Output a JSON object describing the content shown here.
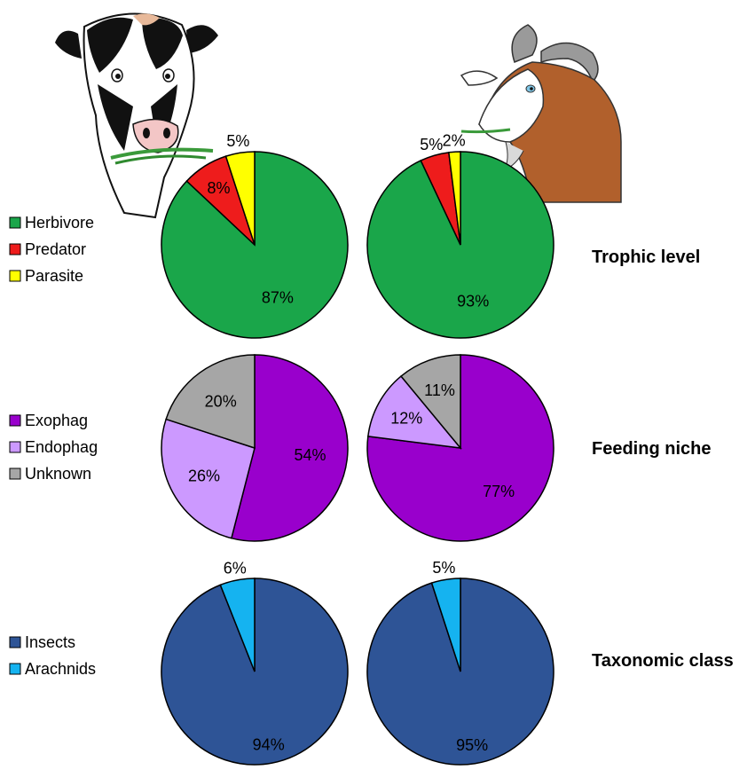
{
  "chart_data": [
    {
      "type": "pie",
      "row": "Trophic level",
      "animal": "cow",
      "title": "",
      "slices": [
        {
          "name": "Herbivore",
          "value": 87,
          "label": "87%",
          "color": "#1aa64a"
        },
        {
          "name": "Predator",
          "value": 8,
          "label": "8%",
          "color": "#ee1c1c"
        },
        {
          "name": "Parasite",
          "value": 5,
          "label": "5%",
          "color": "#ffff00"
        }
      ]
    },
    {
      "type": "pie",
      "row": "Trophic level",
      "animal": "goat",
      "title": "",
      "slices": [
        {
          "name": "Herbivore",
          "value": 93,
          "label": "93%",
          "color": "#1aa64a"
        },
        {
          "name": "Predator",
          "value": 5,
          "label": "5%",
          "color": "#ee1c1c"
        },
        {
          "name": "Parasite",
          "value": 2,
          "label": "2%",
          "color": "#ffff00"
        }
      ]
    },
    {
      "type": "pie",
      "row": "Feeding niche",
      "animal": "cow",
      "title": "",
      "slices": [
        {
          "name": "Exophag",
          "value": 54,
          "label": "54%",
          "color": "#9900cc"
        },
        {
          "name": "Endophag",
          "value": 26,
          "label": "26%",
          "color": "#cc99ff"
        },
        {
          "name": "Unknown",
          "value": 20,
          "label": "20%",
          "color": "#a6a6a6"
        }
      ]
    },
    {
      "type": "pie",
      "row": "Feeding niche",
      "animal": "goat",
      "title": "",
      "slices": [
        {
          "name": "Exophag",
          "value": 77,
          "label": "77%",
          "color": "#9900cc"
        },
        {
          "name": "Endophag",
          "value": 12,
          "label": "12%",
          "color": "#cc99ff"
        },
        {
          "name": "Unknown",
          "value": 11,
          "label": "11%",
          "color": "#a6a6a6"
        }
      ]
    },
    {
      "type": "pie",
      "row": "Taxonomic class",
      "animal": "cow",
      "title": "",
      "slices": [
        {
          "name": "Insects",
          "value": 94,
          "label": "94%",
          "color": "#2e5496"
        },
        {
          "name": "Arachnids",
          "value": 6,
          "label": "6%",
          "color": "#15b3f0"
        }
      ]
    },
    {
      "type": "pie",
      "row": "Taxonomic class",
      "animal": "goat",
      "title": "",
      "slices": [
        {
          "name": "Insects",
          "value": 95,
          "label": "95%",
          "color": "#2e5496"
        },
        {
          "name": "Arachnids",
          "value": 5,
          "label": "5%",
          "color": "#15b3f0"
        }
      ]
    }
  ],
  "rows": [
    {
      "title": "Trophic level",
      "legend": [
        {
          "name": "Herbivore",
          "color": "#1aa64a"
        },
        {
          "name": "Predator",
          "color": "#ee1c1c"
        },
        {
          "name": "Parasite",
          "color": "#ffff00"
        }
      ]
    },
    {
      "title": "Feeding niche",
      "legend": [
        {
          "name": "Exophag",
          "color": "#9900cc"
        },
        {
          "name": "Endophag",
          "color": "#cc99ff"
        },
        {
          "name": "Unknown",
          "color": "#a6a6a6"
        }
      ]
    },
    {
      "title": "Taxonomic class",
      "legend": [
        {
          "name": "Insects",
          "color": "#2e5496"
        },
        {
          "name": "Arachnids",
          "color": "#15b3f0"
        }
      ]
    }
  ],
  "illustrations": {
    "left": "cow-illustration",
    "right": "goat-illustration"
  }
}
